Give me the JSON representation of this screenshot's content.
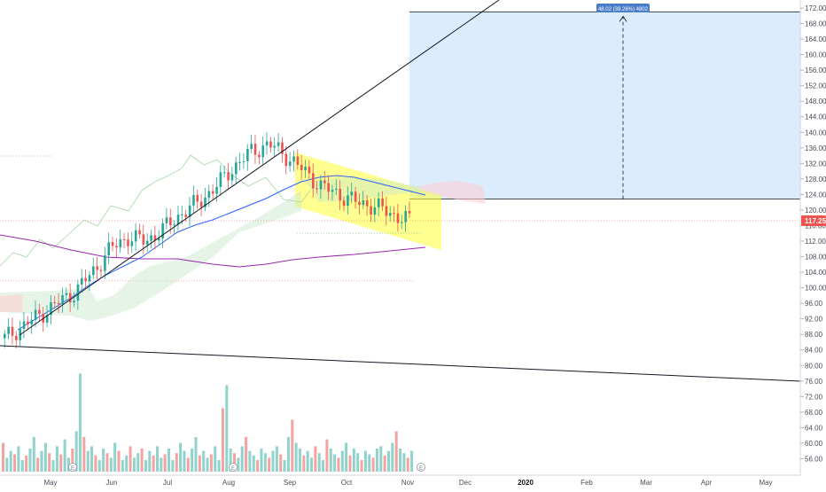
{
  "colors": {
    "up": "#26a69a",
    "down": "#ef5350",
    "vol_up": "#8ed3cc",
    "vol_down": "#f4a3a1",
    "ma_blue": "#2962ff",
    "ma_purple": "#9c27b0",
    "trend": "#131722",
    "channel_fill": "#ffff33",
    "target_fill": "#cfe5fb",
    "price_tag": "#ef5350",
    "measure_tag": "#4a7dc9",
    "cloud_green": "#c8e6c9",
    "cloud_red": "#ffcdd2"
  },
  "price_axis": {
    "labels": [
      "172.00",
      "168.00",
      "164.00",
      "160.00",
      "156.00",
      "152.00",
      "148.00",
      "144.00",
      "140.00",
      "136.00",
      "132.00",
      "128.00",
      "124.00",
      "120.00",
      "116.00",
      "112.00",
      "108.00",
      "104.00",
      "100.00",
      "96.00",
      "92.00",
      "88.00",
      "84.00",
      "80.00",
      "76.00",
      "72.00",
      "68.00",
      "64.00",
      "60.00",
      "56.00"
    ],
    "current_price": "117.25"
  },
  "time_axis": {
    "labels": [
      "May",
      "Jun",
      "Jul",
      "Aug",
      "Sep",
      "Oct",
      "Nov",
      "Dec",
      "2020",
      "Feb",
      "Mar",
      "Apr",
      "May"
    ],
    "bold_label": "2020"
  },
  "measure": {
    "label": "48.02 (39.26%) 4802"
  },
  "earnings_markers": [
    "E",
    "E",
    "E",
    "E"
  ],
  "chart_data": {
    "type": "candlestick",
    "ylim": [
      54,
      174
    ],
    "x_range_months": [
      "Apr 2019",
      "May 2020"
    ],
    "series": [
      {
        "name": "",
        "type": "candlestick",
        "close_path": [
          87,
          90,
          93,
          96,
          99,
          104,
          110,
          113,
          112,
          115,
          119,
          122,
          126,
          131,
          135,
          137,
          134,
          130,
          126,
          124,
          122,
          121,
          119,
          117.25
        ]
      },
      {
        "name": "",
        "type": "volume"
      }
    ],
    "annotations": {
      "target_zone": [
        122.8,
        171
      ],
      "measured_move": "48.02 (39.26%) 4802",
      "last_price": 117.25
    }
  }
}
